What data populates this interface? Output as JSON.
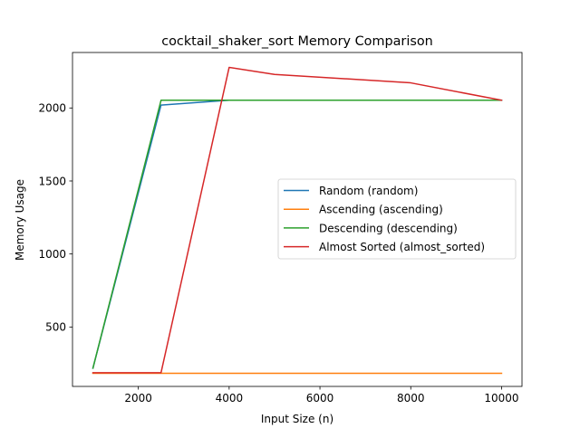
{
  "chart_data": {
    "type": "line",
    "title": "cocktail_shaker_sort Memory Comparison",
    "xlabel": "Input Size (n)",
    "ylabel": "Memory Usage",
    "xlim": [
      550,
      10450
    ],
    "ylim": [
      93,
      2380
    ],
    "xticks": [
      2000,
      4000,
      6000,
      8000,
      10000
    ],
    "yticks": [
      500,
      1000,
      1500,
      2000
    ],
    "grid": false,
    "legend_position": "center-right",
    "series": [
      {
        "name": "Random (random)",
        "color": "#1f77b4",
        "x": [
          1000,
          2500,
          4000,
          5000,
          8000,
          10000
        ],
        "y": [
          218,
          2020,
          2053,
          2053,
          2053,
          2053
        ]
      },
      {
        "name": "Ascending (ascending)",
        "color": "#ff7f0e",
        "x": [
          1000,
          2500,
          4000,
          5000,
          8000,
          10000
        ],
        "y": [
          183,
          183,
          183,
          183,
          183,
          183
        ]
      },
      {
        "name": "Descending (descending)",
        "color": "#2ca02c",
        "x": [
          1000,
          2500,
          4000,
          5000,
          8000,
          10000
        ],
        "y": [
          218,
          2053,
          2053,
          2053,
          2053,
          2053
        ]
      },
      {
        "name": "Almost Sorted (almost_sorted)",
        "color": "#d62728",
        "x": [
          1000,
          2500,
          4000,
          5000,
          8000,
          10000
        ],
        "y": [
          187,
          187,
          2278,
          2230,
          2172,
          2053
        ]
      }
    ]
  }
}
